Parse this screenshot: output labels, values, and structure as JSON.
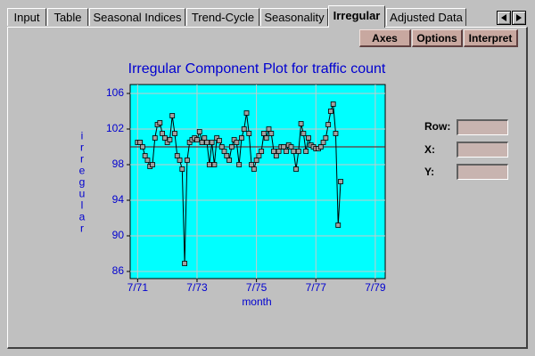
{
  "tabs": [
    "Input",
    "Table",
    "Seasonal Indices",
    "Trend-Cycle",
    "Seasonality",
    "Irregular",
    "Adjusted Data"
  ],
  "buttons": [
    "Axes",
    "Options",
    "Interpret"
  ],
  "fields": [
    "Row:",
    "X:",
    "Y:"
  ],
  "chart_data": {
    "type": "line",
    "title": "Irregular Component Plot for traffic count",
    "xlabel": "month",
    "ylabel": "irregular",
    "x": [
      "7/71",
      "8/71",
      "9/71",
      "10/71",
      "11/71",
      "12/71",
      "1/72",
      "2/72",
      "3/72",
      "4/72",
      "5/72",
      "6/72",
      "7/72",
      "8/72",
      "9/72",
      "10/72",
      "11/72",
      "12/72",
      "1/73",
      "2/73",
      "3/73",
      "4/73",
      "5/73",
      "6/73",
      "7/73",
      "8/73",
      "9/73",
      "10/73",
      "11/73",
      "12/73",
      "1/74",
      "2/74",
      "3/74",
      "4/74",
      "5/74",
      "6/74",
      "7/74",
      "8/74",
      "9/74",
      "10/74",
      "11/74",
      "12/74",
      "1/75",
      "2/75",
      "3/75",
      "4/75",
      "5/75",
      "6/75",
      "7/75",
      "8/75",
      "9/75",
      "10/75",
      "11/75",
      "12/75",
      "1/76",
      "2/76",
      "3/76",
      "4/76",
      "5/76",
      "6/76",
      "7/76",
      "8/76",
      "9/76",
      "10/76",
      "11/76",
      "12/76",
      "1/77",
      "2/77",
      "3/77",
      "4/77",
      "5/77",
      "6/77",
      "7/77",
      "8/77",
      "9/77",
      "10/77",
      "11/77",
      "12/77",
      "1/78",
      "2/78",
      "3/78",
      "4/78",
      "5/78"
    ],
    "values": [
      100.5,
      100.5,
      100,
      99,
      98.5,
      97.8,
      98,
      101,
      102.5,
      102.7,
      101.5,
      101,
      100.5,
      100.8,
      103.5,
      101.5,
      99,
      98.5,
      97.5,
      86.9,
      98.5,
      100.5,
      100.8,
      101,
      100.8,
      101.7,
      100.5,
      101,
      100.5,
      98,
      100.5,
      98,
      101,
      100.7,
      100,
      99.5,
      99,
      98.5,
      100,
      100.8,
      100.5,
      98,
      101,
      102,
      103.8,
      101.5,
      98,
      97.5,
      98.5,
      99,
      99.5,
      101.5,
      101,
      102,
      101.5,
      99.5,
      99,
      99.5,
      100,
      100,
      99.5,
      100.2,
      100,
      99.5,
      97.5,
      99.5,
      102.6,
      101.5,
      99.5,
      101,
      100.2,
      100,
      99.8,
      99.8,
      100,
      100.5,
      101,
      102.5,
      104,
      104.8,
      101.5,
      91.2,
      96.1
    ],
    "color": "#000000",
    "marker_color": "#a0a0a0",
    "refline": 100,
    "refline_color": "#800000",
    "xlim": [
      "4/71",
      "11/79"
    ],
    "xticks": [
      "7/71",
      "7/73",
      "7/75",
      "7/77",
      "7/79"
    ],
    "ylim": [
      85.2,
      107
    ],
    "yticks": [
      86,
      90,
      94,
      98,
      102,
      106
    ],
    "grid": true
  }
}
